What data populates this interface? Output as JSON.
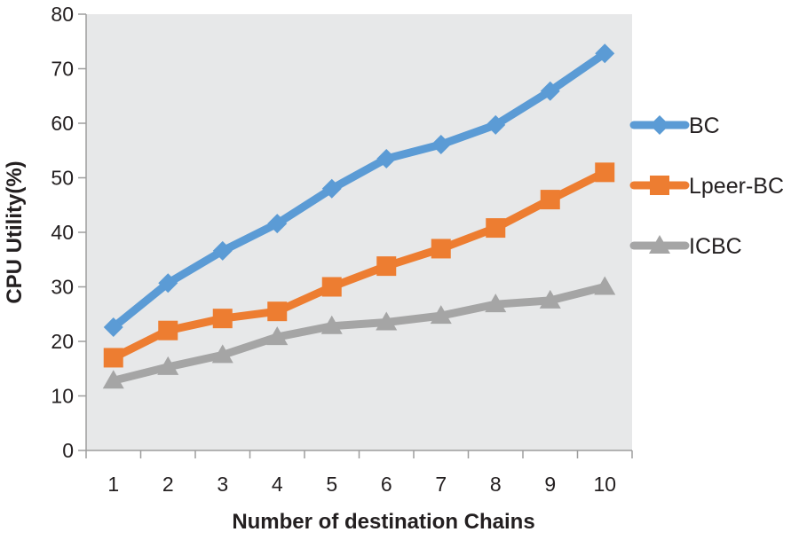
{
  "chart_data": {
    "type": "line",
    "title": "",
    "xlabel": "Number of destination Chains",
    "ylabel": "CPU Utility(%)",
    "categories": [
      "1",
      "2",
      "3",
      "4",
      "5",
      "6",
      "7",
      "8",
      "9",
      "10"
    ],
    "ylim": [
      0,
      80
    ],
    "yticks": [
      "0",
      "10",
      "20",
      "30",
      "40",
      "50",
      "60",
      "70",
      "80"
    ],
    "grid": false,
    "legend_position": "right",
    "series": [
      {
        "name": "BC",
        "color": "#5b9bd5",
        "marker": "diamond",
        "values": [
          22.6,
          30.7,
          36.6,
          41.6,
          48.0,
          53.5,
          56.1,
          59.7,
          65.9,
          72.8
        ]
      },
      {
        "name": "Lpeer-BC",
        "color": "#ed7d31",
        "marker": "square",
        "values": [
          17.0,
          22.0,
          24.2,
          25.5,
          30.0,
          33.8,
          37.0,
          40.8,
          46.0,
          51.0
        ]
      },
      {
        "name": "ICBC",
        "color": "#a5a5a5",
        "marker": "triangle",
        "values": [
          12.8,
          15.3,
          17.5,
          20.8,
          22.8,
          23.5,
          24.7,
          26.8,
          27.5,
          30.0
        ]
      }
    ],
    "plot_background": "#e7e8e9"
  }
}
